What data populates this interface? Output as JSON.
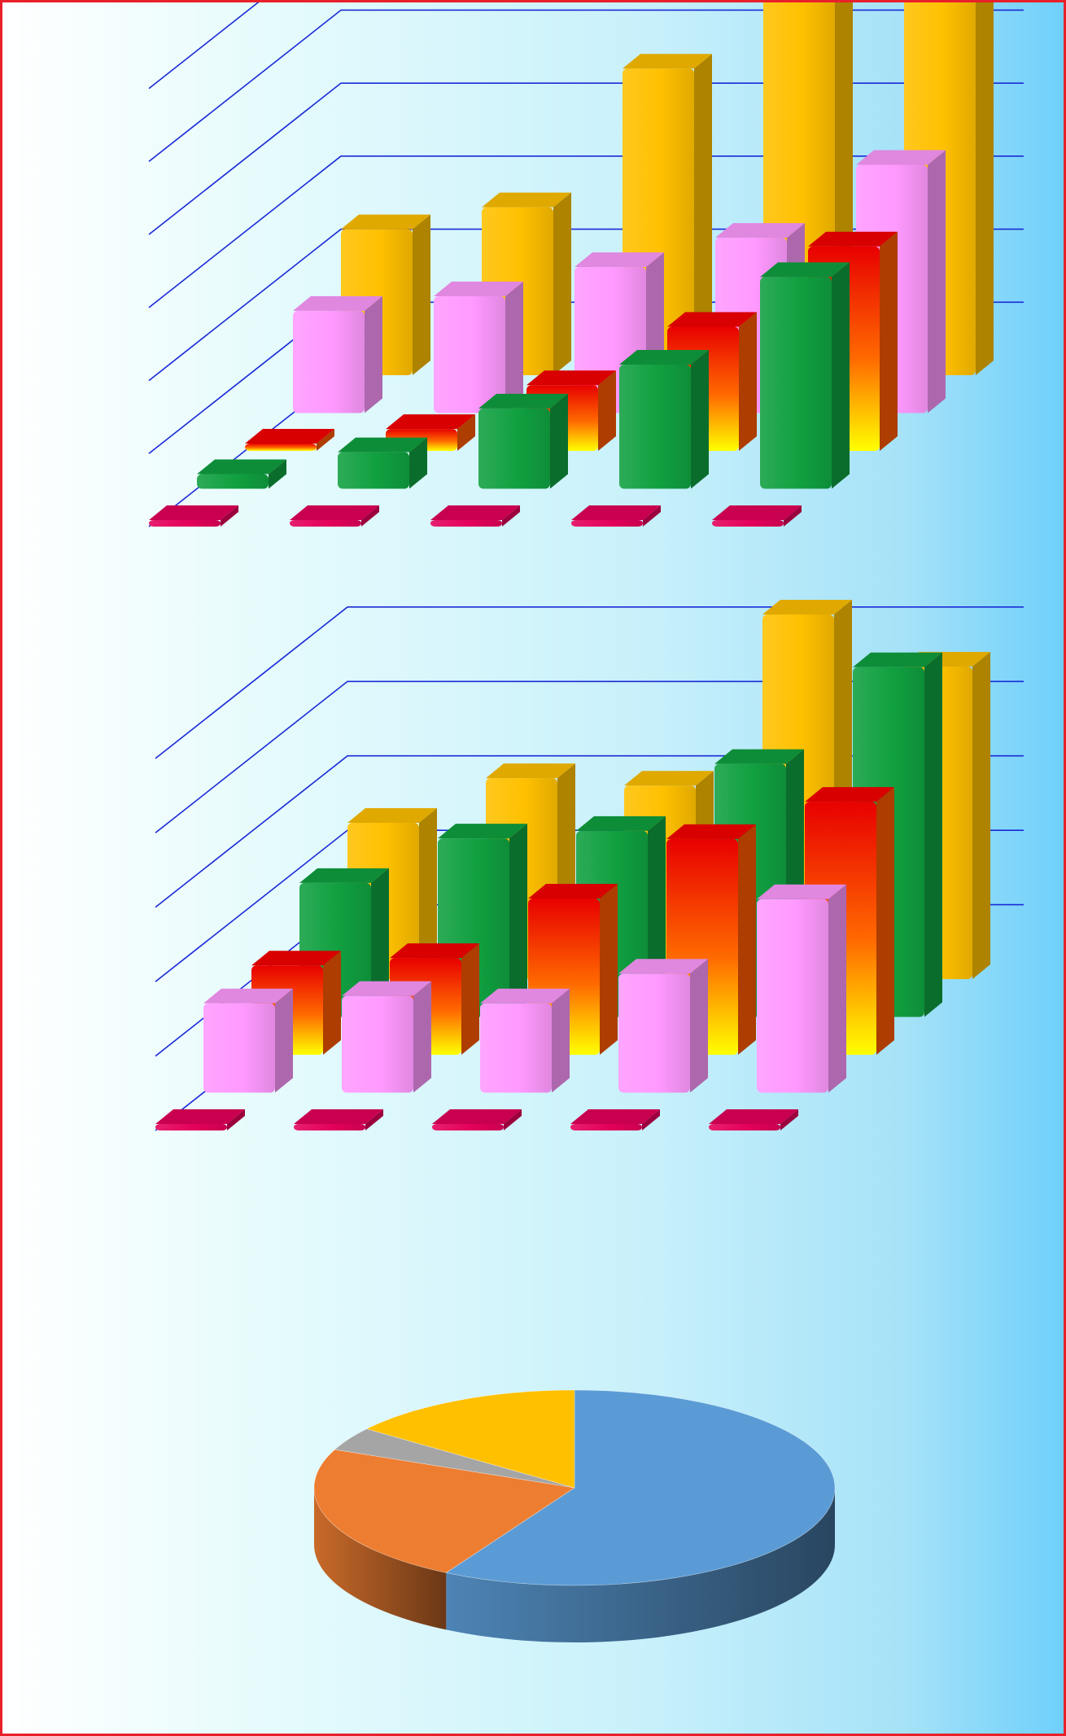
{
  "colors": {
    "frame": "#e8202a",
    "gridline": "#1a2bd6",
    "background_left": "#ffffff",
    "background_right": "#6fd0fb"
  },
  "chart_data": [
    {
      "type": "bar",
      "view": "3d-clustered-bar",
      "gridlines": true,
      "legend": "none",
      "categories": [
        "",
        "",
        "",
        "",
        ""
      ],
      "ylim": [
        0,
        7
      ],
      "series": [
        {
          "color": "#e4005a",
          "values": [
            0.0,
            0.0,
            0.0,
            0.0,
            0.0
          ]
        },
        {
          "color": "#10a040",
          "values": [
            0.2,
            0.5,
            1.1,
            1.7,
            2.9
          ]
        },
        {
          "color": "#ff5a00",
          "values": [
            0.1,
            0.3,
            0.9,
            1.7,
            2.8
          ]
        },
        {
          "color": "#ff99ff",
          "values": [
            1.4,
            1.6,
            2.0,
            2.4,
            3.4
          ]
        },
        {
          "color": "#ffc000",
          "values": [
            2.0,
            2.3,
            4.2,
            5.5,
            5.4
          ]
        }
      ]
    },
    {
      "type": "bar",
      "view": "3d-clustered-bar",
      "gridlines": true,
      "legend": "none",
      "categories": [
        "",
        "",
        "",
        "",
        ""
      ],
      "ylim": [
        0,
        7
      ],
      "series": [
        {
          "color": "#e4005a",
          "values": [
            0.0,
            0.0,
            0.0,
            0.0,
            0.0
          ]
        },
        {
          "color": "#ff99ff",
          "values": [
            1.2,
            1.3,
            1.2,
            1.6,
            2.6
          ]
        },
        {
          "color": "#ff5a00",
          "values": [
            1.2,
            1.3,
            2.1,
            2.9,
            3.4
          ]
        },
        {
          "color": "#10a040",
          "values": [
            1.8,
            2.4,
            2.5,
            3.4,
            4.7
          ]
        },
        {
          "color": "#ffc000",
          "values": [
            2.1,
            2.7,
            2.6,
            4.9,
            4.2
          ]
        }
      ]
    },
    {
      "type": "pie",
      "view": "3d-pie",
      "legend": "none",
      "slices": [
        {
          "value": 58.2,
          "color": "#5b9bd5"
        },
        {
          "value": 23.2,
          "color": "#ed7d31"
        },
        {
          "value": 3.9,
          "color": "#a5a5a5"
        },
        {
          "value": 14.7,
          "color": "#ffc000"
        }
      ]
    }
  ]
}
